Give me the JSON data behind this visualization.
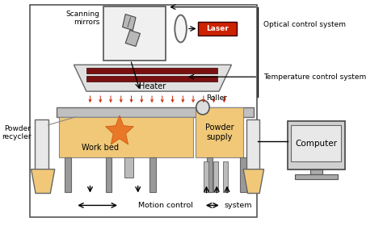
{
  "bg_color": "#ffffff",
  "labels": {
    "scanning_mirrors": "Scanning\nmirrors",
    "laser": "Laser",
    "optical_control": "Optical control system",
    "temperature_control": "Temperature control system",
    "heater": "Heater",
    "powder_recycler": "Powder\nrecycler",
    "roller": "Roller",
    "work_bed": "Work bed",
    "powder_supply": "Powder\nsupply",
    "computer": "Computer",
    "motion_control": "Motion control",
    "system": "system"
  },
  "colors": {
    "laser_red": "#cc2200",
    "heater_bar": "#7a1010",
    "work_bed_fill": "#f0c878",
    "powder_fill": "#f0c878",
    "star_orange": "#e87020",
    "frame_gray": "#aaaaaa",
    "leg_gray": "#999999",
    "heat_arrow": "#cc2200",
    "lens_fill": "#e8e8e8",
    "mirror_box_fill": "#f0f0f0",
    "computer_outer": "#d0d0d0",
    "computer_screen": "#e8e8e8",
    "computer_base": "#aaaaaa",
    "table_top": "#c0c0c0"
  }
}
